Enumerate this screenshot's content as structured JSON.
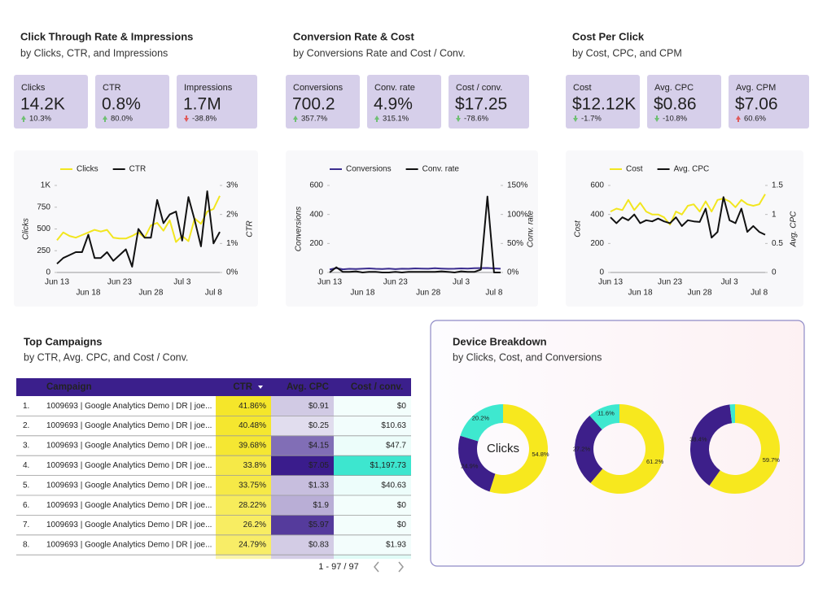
{
  "sections": [
    {
      "title": "Click Through Rate & Impressions",
      "subtitle": "by Clicks, CTR, and Impressions",
      "kpis": [
        {
          "label": "Clicks",
          "value": "14.2K",
          "change": "10.3%",
          "trend": "up",
          "color": "#6fbf73"
        },
        {
          "label": "CTR",
          "value": "0.8%",
          "change": "80.0%",
          "trend": "up",
          "color": "#6fbf73"
        },
        {
          "label": "Impressions",
          "value": "1.7M",
          "change": "-38.8%",
          "trend": "down",
          "color": "#e05a5a"
        }
      ]
    },
    {
      "title": "Conversion Rate & Cost",
      "subtitle": "by Conversions Rate and Cost / Conv.",
      "kpis": [
        {
          "label": "Conversions",
          "value": "700.2",
          "change": "357.7%",
          "trend": "up",
          "color": "#6fbf73"
        },
        {
          "label": "Conv. rate",
          "value": "4.9%",
          "change": "315.1%",
          "trend": "up",
          "color": "#6fbf73"
        },
        {
          "label": "Cost / conv.",
          "value": "$17.25",
          "change": "-78.6%",
          "trend": "down",
          "color": "#6fbf73"
        }
      ]
    },
    {
      "title": "Cost Per Click",
      "subtitle": "by Cost, CPC, and CPM",
      "kpis": [
        {
          "label": "Cost",
          "value": "$12.12K",
          "change": "-1.7%",
          "trend": "down",
          "color": "#6fbf73"
        },
        {
          "label": "Avg. CPC",
          "value": "$0.86",
          "change": "-10.8%",
          "trend": "down",
          "color": "#6fbf73"
        },
        {
          "label": "Avg. CPM",
          "value": "$7.06",
          "change": "60.6%",
          "trend": "up",
          "color": "#e05a5a"
        }
      ]
    }
  ],
  "chart_data": [
    {
      "type": "line",
      "ylabel": "Clicks",
      "y2label": "CTR",
      "categories": [
        "Jun 13",
        null,
        null,
        null,
        null,
        "Jun 18",
        null,
        null,
        null,
        null,
        "Jun 23",
        null,
        null,
        null,
        null,
        "Jun 28",
        null,
        null,
        null,
        null,
        "Jul 3",
        null,
        null,
        null,
        null,
        "Jul 8",
        null
      ],
      "series": [
        {
          "name": "Clicks",
          "color": "#f2e61f",
          "values": [
            370,
            460,
            420,
            400,
            430,
            460,
            490,
            470,
            490,
            400,
            390,
            390,
            420,
            460,
            400,
            540,
            570,
            480,
            600,
            350,
            420,
            360,
            620,
            560,
            700,
            730,
            880
          ]
        },
        {
          "name": "CTR",
          "color": "#111111",
          "axis": "y2",
          "values": [
            0.3,
            0.5,
            0.6,
            0.7,
            0.7,
            1.3,
            0.5,
            0.5,
            0.7,
            0.4,
            0.6,
            0.8,
            0.2,
            1.5,
            1.2,
            1.2,
            2.5,
            1.7,
            2.0,
            2.1,
            1.1,
            2.6,
            1.8,
            0.9,
            2.8,
            1.0,
            1.4
          ]
        }
      ],
      "ylim": [
        0,
        1000
      ],
      "yticks": [
        0,
        250,
        500,
        750,
        {
          "value": 1000,
          "label": "1K"
        }
      ],
      "y2lim": [
        0,
        3
      ],
      "y2ticks": [
        {
          "value": 0,
          "label": "0%"
        },
        {
          "value": 1,
          "label": "1%"
        },
        {
          "value": 2,
          "label": "2%"
        },
        {
          "value": 3,
          "label": "3%"
        }
      ],
      "grid": false
    },
    {
      "type": "line",
      "ylabel": "Conversions",
      "y2label": "Conv. rate",
      "categories": [
        "Jun 13",
        null,
        null,
        null,
        null,
        "Jun 18",
        null,
        null,
        null,
        null,
        "Jun 23",
        null,
        null,
        null,
        null,
        "Jun 28",
        null,
        null,
        null,
        null,
        "Jul 3",
        null,
        null,
        null,
        null,
        "Jul 8",
        null
      ],
      "series": [
        {
          "name": "Conversions",
          "color": "#3b2d8f",
          "values": [
            20,
            30,
            22,
            25,
            24,
            26,
            28,
            25,
            24,
            27,
            23,
            26,
            25,
            28,
            27,
            26,
            29,
            27,
            25,
            26,
            28,
            27,
            29,
            30,
            31,
            28,
            26
          ]
        },
        {
          "name": "Conv. rate",
          "color": "#111111",
          "axis": "y2",
          "values": [
            0,
            9,
            1,
            1,
            2,
            0,
            1,
            1,
            0,
            0,
            1,
            0,
            1,
            1,
            1,
            1,
            1,
            2,
            1,
            0,
            2,
            1,
            1,
            5,
            131,
            0,
            0
          ]
        }
      ],
      "ylim": [
        0,
        600
      ],
      "yticks": [
        0,
        200,
        400,
        600
      ],
      "y2lim": [
        0,
        150
      ],
      "y2ticks": [
        {
          "value": 0,
          "label": "0%"
        },
        {
          "value": 50,
          "label": "50%"
        },
        {
          "value": 100,
          "label": "100%"
        },
        {
          "value": 150,
          "label": "150%"
        }
      ],
      "grid": false
    },
    {
      "type": "line",
      "ylabel": "Cost",
      "y2label": "Avg. CPC",
      "categories": [
        "Jun 13",
        null,
        null,
        null,
        null,
        "Jun 18",
        null,
        null,
        null,
        null,
        "Jun 23",
        null,
        null,
        null,
        null,
        "Jun 28",
        null,
        null,
        null,
        null,
        "Jul 3",
        null,
        null,
        null,
        null,
        "Jul 8",
        null
      ],
      "series": [
        {
          "name": "Cost",
          "color": "#f2e61f",
          "values": [
            420,
            440,
            430,
            500,
            430,
            480,
            420,
            400,
            400,
            380,
            330,
            420,
            400,
            460,
            470,
            420,
            490,
            420,
            500,
            510,
            490,
            450,
            500,
            470,
            460,
            470,
            540
          ]
        },
        {
          "name": "Avg. CPC",
          "color": "#111111",
          "axis": "y2",
          "values": [
            0.95,
            0.85,
            0.95,
            0.9,
            1.0,
            0.85,
            0.9,
            0.88,
            0.93,
            0.88,
            0.85,
            0.95,
            0.8,
            0.9,
            0.88,
            0.87,
            1.1,
            0.6,
            0.7,
            1.3,
            0.9,
            0.85,
            1.1,
            0.7,
            0.8,
            0.7,
            0.65
          ]
        }
      ],
      "ylim": [
        0,
        600
      ],
      "yticks": [
        0,
        200,
        400,
        600
      ],
      "y2lim": [
        0,
        1.5
      ],
      "y2ticks": [
        0,
        0.5,
        1,
        1.5
      ],
      "grid": false
    },
    {
      "type": "donut",
      "center_label": "Clicks",
      "colors": [
        "#f7e81e",
        "#3d1f8a",
        "#3ee8cf"
      ],
      "values": [
        54.8,
        24.9,
        20.2
      ],
      "value_labels": [
        "54.8%",
        "24.9%",
        "20.2%"
      ]
    },
    {
      "type": "donut",
      "colors": [
        "#f7e81e",
        "#3d1f8a",
        "#3ee8cf"
      ],
      "values": [
        61.2,
        27.2,
        11.6
      ],
      "value_labels": [
        "61.2%",
        "27.2%",
        "11.6%"
      ]
    },
    {
      "type": "donut",
      "colors": [
        "#f7e81e",
        "#3d1f8a",
        "#3ee8cf"
      ],
      "values": [
        59.7,
        38.4,
        1.9
      ],
      "value_labels": [
        "59.7%",
        "38.4%",
        null
      ]
    }
  ],
  "table": {
    "title": "Top Campaigns",
    "subtitle": "by CTR, Avg. CPC, and Cost / Conv.",
    "columns": [
      "Campaign",
      "CTR",
      "Avg. CPC",
      "Cost / conv."
    ],
    "metric_colors": [
      "#f5e62a",
      "#3a1c8c",
      "#3de6cf"
    ],
    "rows": [
      [
        "1.",
        "1009693 | Google Analytics Demo | DR | joe...",
        "41.86%",
        "$0.91",
        "$0"
      ],
      [
        "2.",
        "1009693 | Google Analytics Demo | DR | joe...",
        "40.48%",
        "$0.25",
        "$10.63"
      ],
      [
        "3.",
        "1009693 | Google Analytics Demo | DR | joe...",
        "39.68%",
        "$4.15",
        "$47.7"
      ],
      [
        "4.",
        "1009693 | Google Analytics Demo | DR | joe...",
        "33.8%",
        "$7.05",
        "$1,197.73"
      ],
      [
        "5.",
        "1009693 | Google Analytics Demo | DR | joe...",
        "33.75%",
        "$1.33",
        "$40.63"
      ],
      [
        "6.",
        "1009693 | Google Analytics Demo | DR | joe...",
        "28.22%",
        "$1.9",
        "$0"
      ],
      [
        "7.",
        "1009693 | Google Analytics Demo | DR | joe...",
        "26.2%",
        "$5.97",
        "$0"
      ],
      [
        "8.",
        "1009693 | Google Analytics Demo | DR | joe...",
        "24.79%",
        "$0.83",
        "$1.93"
      ]
    ],
    "pagination": "1 - 97 / 97"
  },
  "device": {
    "title": "Device Breakdown",
    "subtitle": "by Clicks, Cost, and Conversions"
  }
}
